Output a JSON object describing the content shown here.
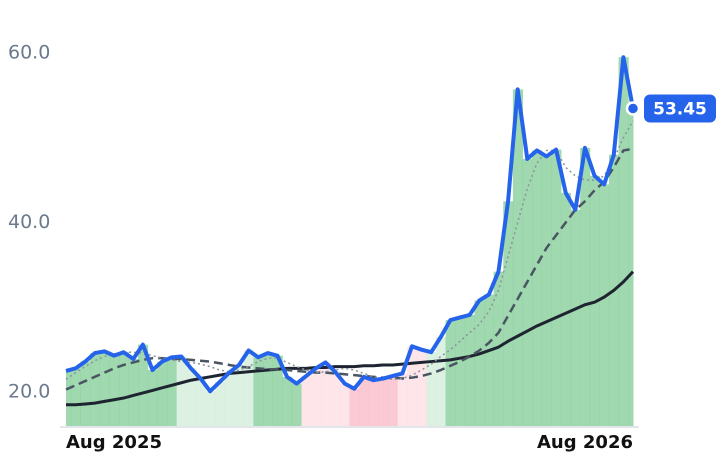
{
  "chart_data": {
    "type": "line",
    "categories": [
      "Aug 2025",
      null,
      null,
      null,
      null,
      null,
      null,
      null,
      null,
      null,
      null,
      null,
      null,
      null,
      null,
      null,
      null,
      null,
      null,
      null,
      null,
      null,
      null,
      null,
      null,
      null,
      null,
      null,
      null,
      null,
      null,
      null,
      null,
      null,
      null,
      null,
      null,
      null,
      null,
      null,
      null,
      null,
      null,
      null,
      null,
      null,
      null,
      null,
      null,
      null,
      null,
      null,
      null,
      null,
      null,
      null,
      null,
      null,
      null,
      "Aug 2026"
    ],
    "ylim": [
      16,
      62
    ],
    "yticks": [
      {
        "value": 20,
        "label": "20.0"
      },
      {
        "value": 40,
        "label": "40.0"
      },
      {
        "value": 60,
        "label": "60.0"
      }
    ],
    "grid": false,
    "area_colors": [
      "#8fd1a1",
      "#8fd1a1",
      "#8fd1a1",
      "#8fd1a1",
      "#8fd1a1",
      "#8fd1a1",
      "#8fd1a1",
      "#8fd1a1",
      "#8fd1a1",
      "#8fd1a1",
      "#8fd1a1",
      "#8fd1a1",
      "#d6efdc",
      "#d6efdc",
      "#d6efdc",
      "#d6efdc",
      "#d6efdc",
      "#d6efdc",
      "#d6efdc",
      "#d6efdc",
      "#8fd1a1",
      "#8fd1a1",
      "#8fd1a1",
      "#8fd1a1",
      "#8fd1a1",
      "#fde0e6",
      "#fde0e6",
      "#fde0e6",
      "#fde0e6",
      "#fde0e6",
      "#f9c0cb",
      "#f9c0cb",
      "#f9c0cb",
      "#f9c0cb",
      "#f9c0cb",
      "#fde0e6",
      "#fde0e6",
      "#fde0e6",
      "#d6efdc",
      "#d6efdc",
      "#8fd1a1",
      "#8fd1a1",
      "#8fd1a1",
      "#8fd1a1",
      "#8fd1a1",
      "#8fd1a1",
      "#8fd1a1",
      "#8fd1a1",
      "#8fd1a1",
      "#8fd1a1",
      "#8fd1a1",
      "#8fd1a1",
      "#8fd1a1",
      "#8fd1a1",
      "#8fd1a1",
      "#8fd1a1",
      "#8fd1a1",
      "#8fd1a1",
      "#8fd1a1",
      "#8fd1a1"
    ],
    "series": [
      {
        "style": "solid",
        "color": "#1e2530",
        "width": 3,
        "values": [
          18.5,
          18.5,
          18.6,
          18.7,
          18.9,
          19.1,
          19.3,
          19.6,
          19.9,
          20.2,
          20.5,
          20.8,
          21.1,
          21.4,
          21.6,
          21.8,
          22.0,
          22.2,
          22.3,
          22.4,
          22.5,
          22.6,
          22.7,
          22.8,
          22.8,
          22.8,
          22.9,
          22.9,
          23.0,
          23.0,
          23.0,
          23.1,
          23.1,
          23.2,
          23.2,
          23.3,
          23.4,
          23.5,
          23.6,
          23.7,
          23.8,
          24.0,
          24.2,
          24.5,
          24.9,
          25.3,
          26.0,
          26.6,
          27.2,
          27.8,
          28.3,
          28.8,
          29.3,
          29.8,
          30.3,
          30.6,
          31.2,
          32.0,
          33.0,
          34.2
        ]
      },
      {
        "style": "dashed",
        "color": "#4a5563",
        "width": 2.5,
        "values": [
          20.3,
          20.8,
          21.3,
          21.8,
          22.3,
          22.8,
          23.2,
          23.5,
          23.8,
          24.0,
          24.0,
          23.9,
          23.9,
          23.8,
          23.7,
          23.6,
          23.4,
          23.2,
          23.0,
          22.9,
          22.8,
          22.7,
          22.7,
          22.6,
          22.5,
          22.4,
          22.3,
          22.3,
          22.2,
          22.1,
          22.0,
          21.9,
          21.8,
          21.7,
          21.7,
          21.6,
          21.7,
          21.9,
          22.2,
          22.6,
          23.1,
          23.6,
          24.2,
          24.9,
          25.8,
          27.0,
          29.0,
          31.0,
          33.0,
          35.0,
          37.0,
          38.5,
          40.0,
          41.5,
          42.5,
          43.8,
          44.8,
          46.5,
          48.5,
          48.7
        ]
      },
      {
        "style": "dotted",
        "color": "#8a929c",
        "width": 1.5,
        "values": [
          21.5,
          22.3,
          23.0,
          23.7,
          24.2,
          24.5,
          24.7,
          24.7,
          24.6,
          24.3,
          24.0,
          23.8,
          23.6,
          23.5,
          23.3,
          23.0,
          22.6,
          22.4,
          22.6,
          23.0,
          23.6,
          24.0,
          24.0,
          23.5,
          23.0,
          22.6,
          22.3,
          22.4,
          22.6,
          22.8,
          22.6,
          22.2,
          21.8,
          21.6,
          21.5,
          21.6,
          22.0,
          22.6,
          23.3,
          24.2,
          25.0,
          26.0,
          27.0,
          28.0,
          29.5,
          32.0,
          36.0,
          40.0,
          44.0,
          47.0,
          48.5,
          48.5,
          46.5,
          45.5,
          45.0,
          45.0,
          45.5,
          47.5,
          50.0,
          52.0
        ]
      },
      {
        "style": "price",
        "color": "#2563eb",
        "width": 4,
        "values": [
          22.5,
          22.8,
          23.6,
          24.6,
          24.8,
          24.3,
          24.7,
          23.9,
          25.6,
          22.6,
          23.6,
          24.1,
          24.2,
          22.8,
          21.6,
          20.1,
          21.2,
          22.3,
          23.2,
          24.9,
          24.1,
          24.6,
          24.3,
          21.8,
          21.0,
          21.9,
          22.8,
          23.5,
          22.4,
          21.0,
          20.4,
          21.8,
          21.4,
          21.6,
          21.9,
          22.2,
          25.4,
          25.0,
          24.7,
          26.5,
          28.5,
          28.8,
          29.1,
          30.8,
          31.5,
          34.2,
          42.5,
          55.7,
          47.5,
          48.5,
          47.8,
          48.6,
          43.5,
          41.5,
          48.8,
          45.5,
          44.5,
          48.0,
          59.5,
          53.45
        ],
        "value_labels": {
          "59": "53.45"
        }
      }
    ]
  }
}
